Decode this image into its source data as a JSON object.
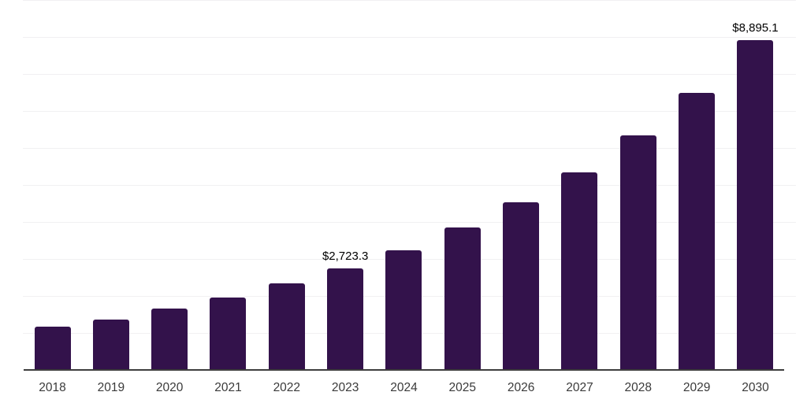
{
  "chart": {
    "background_color": "#ffffff",
    "bar_color": "#33124b",
    "grid_color": "#f1f0f2",
    "axis_color": "#3d3d3d",
    "tick_label_color": "#3a3a3a",
    "value_label_color": "#000000"
  },
  "chart_data": {
    "type": "bar",
    "title": "",
    "xlabel": "",
    "ylabel": "",
    "categories": [
      "2018",
      "2019",
      "2020",
      "2021",
      "2022",
      "2023",
      "2024",
      "2025",
      "2026",
      "2027",
      "2028",
      "2029",
      "2030"
    ],
    "values": [
      1155,
      1340,
      1630,
      1935,
      2310,
      2723.3,
      3210,
      3820,
      4510,
      5325,
      6320,
      7475,
      8895.1
    ],
    "value_labels": [
      "",
      "",
      "",
      "",
      "",
      "$2,723.3",
      "",
      "",
      "",
      "",
      "",
      "",
      "$8,895.1"
    ],
    "ylim": [
      0,
      10000
    ],
    "grid_step": 1000,
    "grid": "horizontal-only",
    "legend_position": "none",
    "y_axis_tick_labels_visible": false,
    "notes": "Only the 2023 and 2030 bars carry data labels; values for other years estimated from gridlines at $1,000 intervals."
  }
}
